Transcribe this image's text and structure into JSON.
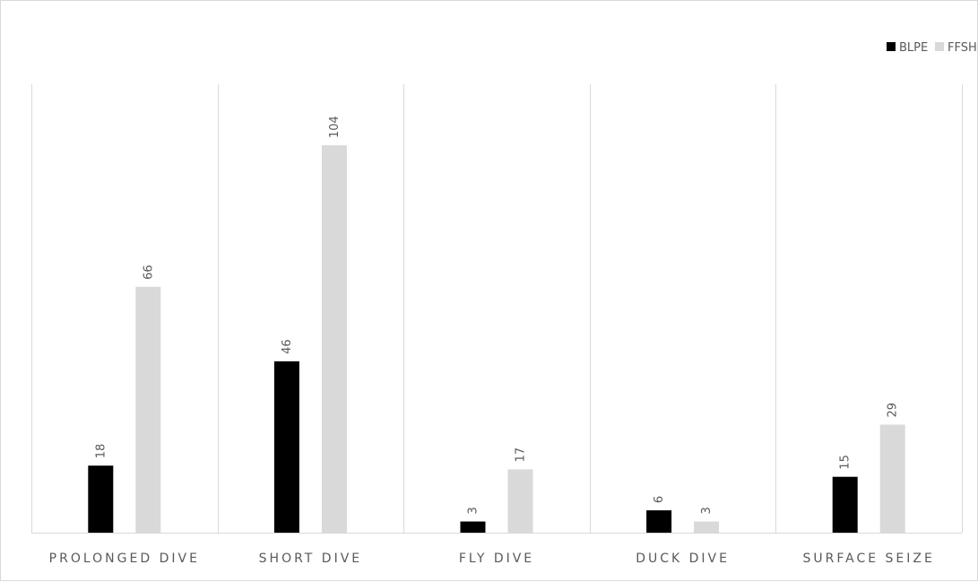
{
  "chart_data": {
    "type": "bar",
    "title": "",
    "xlabel": "",
    "ylabel": "",
    "categories": [
      "PROLONGED DIVE",
      "SHORT DIVE",
      "FLY DIVE",
      "DUCK DIVE",
      "SURFACE SEIZE"
    ],
    "series": [
      {
        "name": "BLPE",
        "values": [
          18,
          46,
          3,
          6,
          15
        ],
        "color": "#000000"
      },
      {
        "name": "FFSH",
        "values": [
          66,
          104,
          17,
          3,
          29
        ],
        "color": "#d9d9d9"
      }
    ],
    "ylim": [
      0,
      112
    ],
    "grid": "vertical category separators",
    "legend": "top-right",
    "data_labels": true
  }
}
